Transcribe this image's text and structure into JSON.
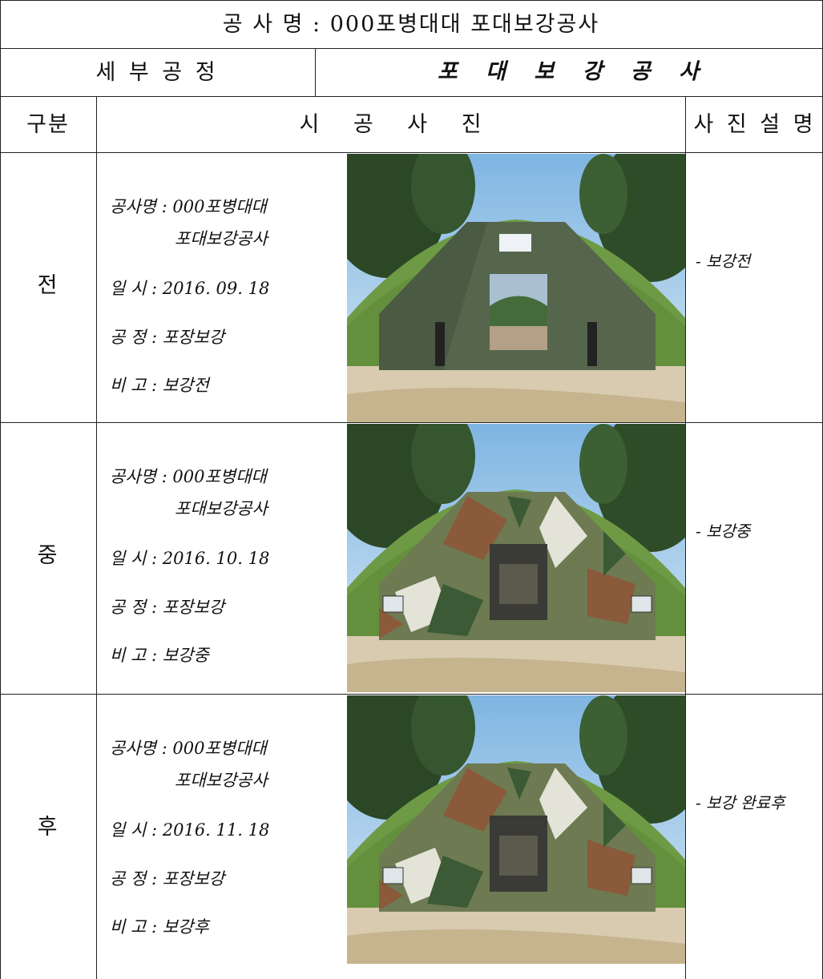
{
  "header": {
    "project": "공 사 명 : 000포병대대 포대보강공사",
    "process_label": "세 부 공 정",
    "process": "포 대 보 강 공 사"
  },
  "columns": [
    "구분",
    "시 공 사 진",
    "사 진 설 명"
  ],
  "rows": [
    {
      "stage": "전",
      "info": [
        "공사명 : 000포병대대",
        "포대보강공사",
        "일 시 : 2016. 09. 18",
        "공 정 : 포장보강",
        "비 고 : 보강전"
      ],
      "description": "- 보강전"
    },
    {
      "stage": "중",
      "info": [
        "공사명 : 000포병대대",
        "포대보강공사",
        "일 시 : 2016. 10. 18",
        "공 정 : 포장보강",
        "비 고 : 보강중"
      ],
      "description": "- 보강중"
    },
    {
      "stage": "후",
      "info": [
        "공사명 : 000포병대대",
        "포대보강공사",
        "일 시 : 2016. 11. 18",
        "공 정 : 포장보강",
        "비 고 : 보강후"
      ],
      "description": "- 보강 완료후"
    }
  ]
}
